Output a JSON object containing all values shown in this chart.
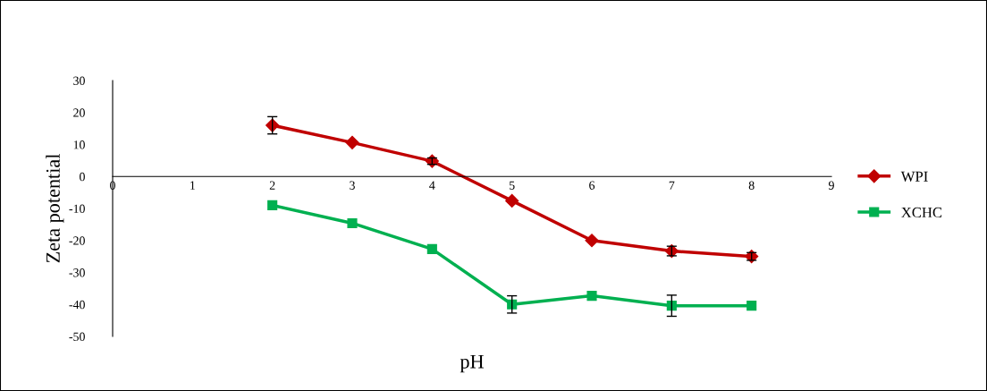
{
  "chart_data": {
    "type": "line",
    "xlabel": "pH",
    "ylabel": "Zeta potential",
    "x": [
      2,
      3,
      4,
      5,
      6,
      7,
      8
    ],
    "series": [
      {
        "name": "WPI",
        "color": "#c00000",
        "marker": "diamond",
        "values": [
          16,
          10.6,
          4.8,
          -7.6,
          -20,
          -23.3,
          -25
        ],
        "errors": [
          2.7,
          null,
          1,
          null,
          null,
          1.5,
          1.2
        ]
      },
      {
        "name": "XCHC",
        "color": "#00b050",
        "marker": "square",
        "values": [
          -9,
          -14.6,
          -22.7,
          -40,
          -37.3,
          -40.4,
          -40.4
        ],
        "errors": [
          null,
          null,
          null,
          2.7,
          null,
          3.3,
          null
        ]
      }
    ],
    "xlim": [
      0,
      9
    ],
    "xticks": [
      0,
      1,
      2,
      3,
      4,
      5,
      6,
      7,
      8,
      9
    ],
    "ylim": [
      -50,
      30
    ],
    "yticks": [
      -50,
      -40,
      -30,
      -20,
      -10,
      0,
      10,
      20,
      30
    ],
    "grid": false,
    "legend": "right",
    "line_style": "solid"
  }
}
